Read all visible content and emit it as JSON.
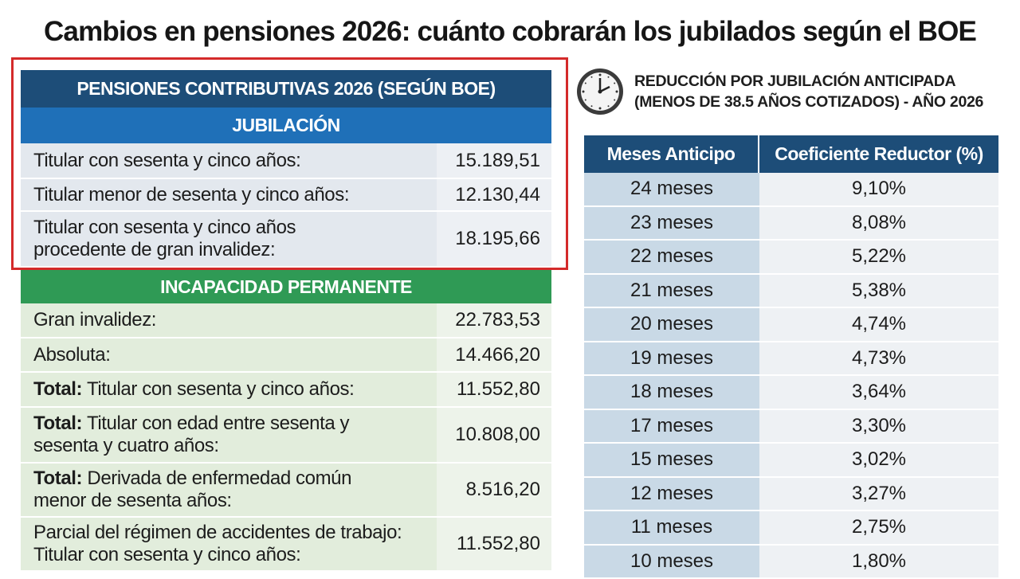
{
  "title": "Cambios en pensiones 2026: cuánto cobrarán los jubilados según el BOE",
  "left_table": {
    "header": "PENSIONES CONTRIBUTIVAS 2026 (SEGÚN BOE)",
    "jubilacion": {
      "header": "JUBILACIÓN",
      "rows": [
        {
          "bold": "",
          "label": "Titular con sesenta y cinco años:",
          "label2": "",
          "value": "15.189,51"
        },
        {
          "bold": "",
          "label": "Titular menor de sesenta y cinco años:",
          "label2": "",
          "value": "12.130,44"
        },
        {
          "bold": "",
          "label": "Titular con sesenta y cinco años",
          "label2": "procedente de gran invalidez:",
          "value": "18.195,66"
        }
      ]
    },
    "incapacidad": {
      "header": "INCAPACIDAD PERMANENTE",
      "rows": [
        {
          "bold": "",
          "label": "Gran invalidez:",
          "label2": "",
          "value": "22.783,53"
        },
        {
          "bold": "",
          "label": "Absoluta:",
          "label2": "",
          "value": "14.466,20"
        },
        {
          "bold": "Total:",
          "label": " Titular con sesenta y cinco años:",
          "label2": "",
          "value": "11.552,80"
        },
        {
          "bold": "Total:",
          "label": " Titular con edad entre sesenta y",
          "label2": "sesenta y cuatro años:",
          "value": "10.808,00"
        },
        {
          "bold": "Total:",
          "label": " Derivada de enfermedad común",
          "label2": "menor de sesenta años:",
          "value": "8.516,20"
        },
        {
          "bold": "",
          "label": "Parcial del régimen de accidentes de trabajo:",
          "label2": "Titular con sesenta y cinco años:",
          "value": "11.552,80"
        }
      ]
    }
  },
  "right_section": {
    "icon": "clock-icon",
    "title_line1": "REDUCCIÓN POR JUBILACIÓN ANTICIPADA",
    "title_line2": "(MENOS DE 38.5 AÑOS COTIZADOS) - AÑO 2026",
    "columns": [
      "Meses Anticipo",
      "Coeficiente Reductor (%)"
    ],
    "rows": [
      [
        "24 meses",
        "9,10%"
      ],
      [
        "23 meses",
        "8,08%"
      ],
      [
        "22 meses",
        "5,22%"
      ],
      [
        "21 meses",
        "5,38%"
      ],
      [
        "20 meses",
        "4,74%"
      ],
      [
        "19 meses",
        "4,73%"
      ],
      [
        "18 meses",
        "3,64%"
      ],
      [
        "17 meses",
        "3,30%"
      ],
      [
        "15 meses",
        "3,02%"
      ],
      [
        "12 meses",
        "3,27%"
      ],
      [
        "11 meses",
        "2,75%"
      ],
      [
        "10 meses",
        "1,80%"
      ]
    ]
  },
  "colors": {
    "navy": "#1d4d78",
    "blue": "#1f70b8",
    "green": "#2f9a55",
    "highlight_border": "#d42a2a"
  }
}
